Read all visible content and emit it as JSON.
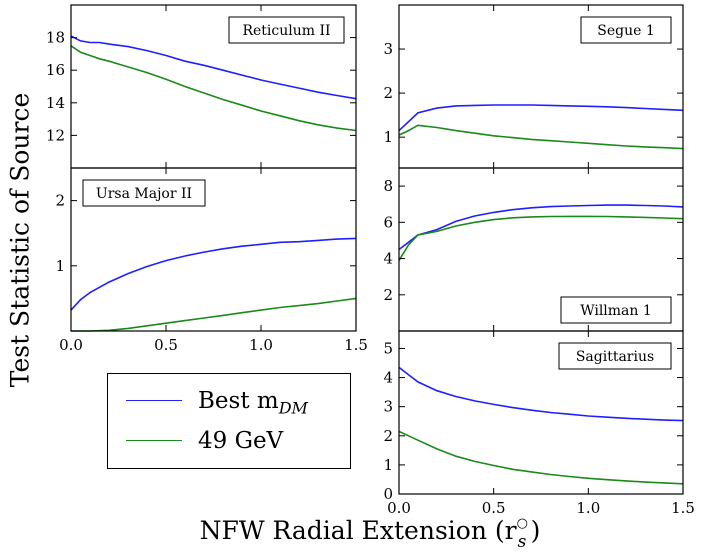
{
  "figure": {
    "ylabel": "Test Statistic of Source",
    "xlabel_main": "NFW Radial Extension (r",
    "xlabel_sub": "s",
    "xlabel_sup": "○",
    "xlabel_close": ")"
  },
  "legend": {
    "best_prefix": "Best m",
    "best_sub": "DM",
    "gev49": "49 GeV"
  },
  "colors": {
    "best": "#1f1fff",
    "gev49": "#1a8a1a",
    "axis": "#000000"
  },
  "chart_data": [
    {
      "type": "line",
      "title": "Reticulum II",
      "xlim": [
        0,
        1.5
      ],
      "ylim": [
        10,
        20
      ],
      "yticks": [
        "12",
        "14",
        "16",
        "18"
      ],
      "xticks": [],
      "series": [
        {
          "name": "Best m_DM",
          "x": [
            0,
            0.05,
            0.1,
            0.15,
            0.2,
            0.3,
            0.4,
            0.5,
            0.6,
            0.7,
            0.8,
            0.9,
            1.0,
            1.1,
            1.2,
            1.3,
            1.4,
            1.5
          ],
          "y": [
            18.1,
            17.8,
            17.7,
            17.7,
            17.6,
            17.45,
            17.2,
            16.9,
            16.55,
            16.3,
            16.0,
            15.7,
            15.4,
            15.15,
            14.9,
            14.65,
            14.45,
            14.25
          ]
        },
        {
          "name": "49 GeV",
          "x": [
            0,
            0.05,
            0.1,
            0.15,
            0.2,
            0.3,
            0.4,
            0.5,
            0.6,
            0.7,
            0.8,
            0.9,
            1.0,
            1.1,
            1.2,
            1.3,
            1.4,
            1.5
          ],
          "y": [
            17.5,
            17.1,
            16.9,
            16.7,
            16.55,
            16.2,
            15.85,
            15.45,
            15.0,
            14.6,
            14.2,
            13.85,
            13.5,
            13.2,
            12.9,
            12.65,
            12.45,
            12.3
          ]
        }
      ]
    },
    {
      "type": "line",
      "title": "Segue 1",
      "xlim": [
        0,
        1.5
      ],
      "ylim": [
        0.3,
        4.0
      ],
      "yticks": [
        "1",
        "2",
        "3"
      ],
      "xticks": [],
      "series": [
        {
          "name": "Best m_DM",
          "x": [
            0,
            0.05,
            0.1,
            0.2,
            0.3,
            0.4,
            0.5,
            0.6,
            0.7,
            0.8,
            0.9,
            1.0,
            1.1,
            1.2,
            1.3,
            1.4,
            1.5
          ],
          "y": [
            1.15,
            1.35,
            1.55,
            1.66,
            1.71,
            1.72,
            1.73,
            1.73,
            1.73,
            1.72,
            1.71,
            1.7,
            1.69,
            1.67,
            1.65,
            1.63,
            1.61
          ]
        },
        {
          "name": "49 GeV",
          "x": [
            0,
            0.05,
            0.1,
            0.2,
            0.3,
            0.4,
            0.5,
            0.6,
            0.7,
            0.8,
            0.9,
            1.0,
            1.1,
            1.2,
            1.3,
            1.4,
            1.5
          ],
          "y": [
            1.05,
            1.15,
            1.27,
            1.22,
            1.15,
            1.09,
            1.03,
            0.99,
            0.95,
            0.92,
            0.89,
            0.86,
            0.83,
            0.8,
            0.78,
            0.76,
            0.74
          ]
        }
      ]
    },
    {
      "type": "line",
      "title": "Ursa Major II",
      "xlim": [
        0,
        1.5
      ],
      "ylim": [
        0,
        2.5
      ],
      "yticks": [
        "1",
        "2"
      ],
      "xticks": [
        "0.0",
        "0.5",
        "1.0",
        "1.5"
      ],
      "series": [
        {
          "name": "Best m_DM",
          "x": [
            0,
            0.05,
            0.1,
            0.2,
            0.3,
            0.4,
            0.5,
            0.6,
            0.7,
            0.8,
            0.9,
            1.0,
            1.1,
            1.2,
            1.3,
            1.4,
            1.5
          ],
          "y": [
            0.32,
            0.48,
            0.59,
            0.75,
            0.88,
            0.99,
            1.08,
            1.15,
            1.21,
            1.26,
            1.3,
            1.33,
            1.36,
            1.37,
            1.39,
            1.41,
            1.42
          ]
        },
        {
          "name": "49 GeV",
          "x": [
            0,
            0.1,
            0.2,
            0.3,
            0.4,
            0.5,
            0.6,
            0.7,
            0.8,
            0.9,
            1.0,
            1.1,
            1.2,
            1.3,
            1.4,
            1.5
          ],
          "y": [
            0.0,
            0.0,
            0.01,
            0.04,
            0.08,
            0.12,
            0.16,
            0.2,
            0.24,
            0.28,
            0.32,
            0.36,
            0.39,
            0.42,
            0.46,
            0.5
          ]
        }
      ]
    },
    {
      "type": "line",
      "title": "Willman 1",
      "xlim": [
        0,
        1.5
      ],
      "ylim": [
        0,
        9
      ],
      "yticks": [
        "2",
        "4",
        "6",
        "8"
      ],
      "xticks": [],
      "series": [
        {
          "name": "Best m_DM",
          "x": [
            0,
            0.05,
            0.1,
            0.2,
            0.3,
            0.4,
            0.5,
            0.6,
            0.7,
            0.8,
            0.9,
            1.0,
            1.1,
            1.2,
            1.3,
            1.4,
            1.5
          ],
          "y": [
            4.5,
            4.9,
            5.3,
            5.6,
            6.05,
            6.35,
            6.55,
            6.7,
            6.8,
            6.87,
            6.9,
            6.93,
            6.95,
            6.95,
            6.93,
            6.9,
            6.85
          ]
        },
        {
          "name": "49 GeV",
          "x": [
            0,
            0.05,
            0.1,
            0.2,
            0.3,
            0.4,
            0.5,
            0.6,
            0.7,
            0.8,
            0.9,
            1.0,
            1.1,
            1.2,
            1.3,
            1.4,
            1.5
          ],
          "y": [
            3.9,
            4.75,
            5.3,
            5.5,
            5.8,
            6.0,
            6.15,
            6.25,
            6.3,
            6.32,
            6.33,
            6.33,
            6.32,
            6.3,
            6.27,
            6.24,
            6.2
          ]
        }
      ]
    },
    {
      "type": "line",
      "title": "Sagittarius",
      "xlim": [
        0,
        1.5
      ],
      "ylim": [
        0,
        5.6
      ],
      "yticks": [
        "0",
        "1",
        "2",
        "3",
        "4",
        "5"
      ],
      "xticks": [
        "0.0",
        "0.5",
        "1.0",
        "1.5"
      ],
      "series": [
        {
          "name": "Best m_DM",
          "x": [
            0,
            0.05,
            0.1,
            0.2,
            0.3,
            0.4,
            0.5,
            0.6,
            0.7,
            0.8,
            0.9,
            1.0,
            1.1,
            1.2,
            1.3,
            1.4,
            1.5
          ],
          "y": [
            4.35,
            4.1,
            3.85,
            3.55,
            3.35,
            3.2,
            3.08,
            2.97,
            2.88,
            2.8,
            2.74,
            2.68,
            2.64,
            2.6,
            2.57,
            2.54,
            2.52
          ]
        },
        {
          "name": "49 GeV",
          "x": [
            0,
            0.05,
            0.1,
            0.2,
            0.3,
            0.4,
            0.5,
            0.6,
            0.7,
            0.8,
            0.9,
            1.0,
            1.1,
            1.2,
            1.3,
            1.4,
            1.5
          ],
          "y": [
            2.15,
            2.0,
            1.85,
            1.55,
            1.3,
            1.12,
            0.98,
            0.85,
            0.76,
            0.67,
            0.6,
            0.54,
            0.49,
            0.45,
            0.41,
            0.38,
            0.35
          ]
        }
      ]
    }
  ]
}
